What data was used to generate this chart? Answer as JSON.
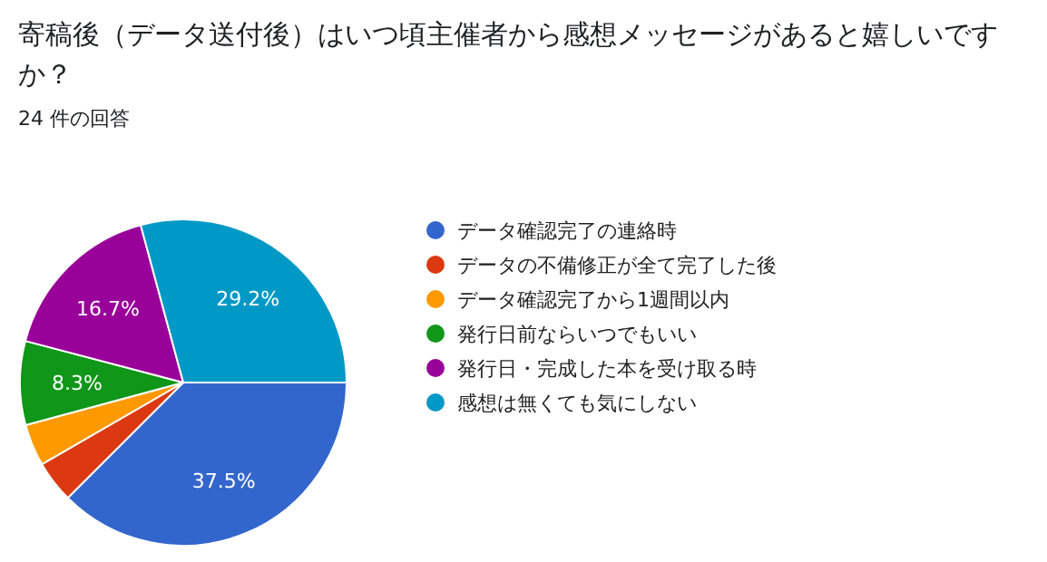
{
  "chart_data": {
    "type": "pie",
    "title": "寄稿後（データ送付後）はいつ頃主催者から感想メッセージがあると嬉しいですか？",
    "subtitle": "24 件の回答",
    "categories": [
      "データ確認完了の連絡時",
      "データの不備修正が全て完了した後",
      "データ確認完了から1週間以内",
      "発行日前ならいつでもいい",
      "発行日・完成した本を受け取る時",
      "感想は無くても気にしない"
    ],
    "values": [
      37.5,
      4.15,
      4.15,
      8.3,
      16.7,
      29.2
    ],
    "value_labels": [
      "37.5%",
      null,
      null,
      "8.3%",
      "16.7%",
      "29.2%"
    ],
    "colors": [
      "#3366cc",
      "#dc3912",
      "#ff9900",
      "#109618",
      "#990099",
      "#0099c6"
    ],
    "legend": "right"
  }
}
